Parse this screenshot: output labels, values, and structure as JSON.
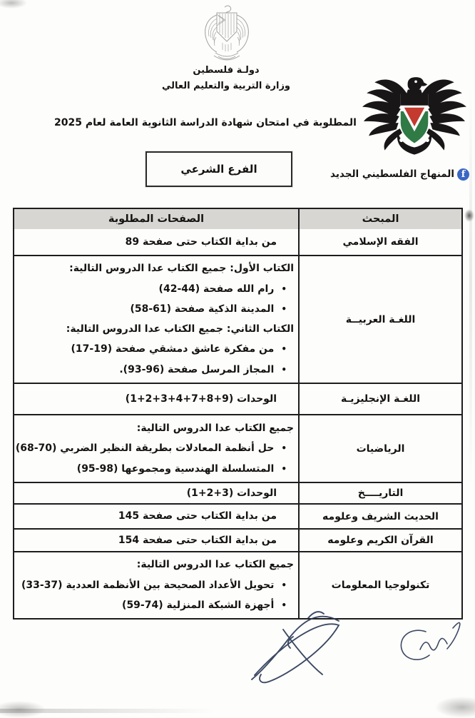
{
  "header": {
    "country": "دولـة فلسطين",
    "ministry": "وزارة التربية والتعليم العالي",
    "title": "المادة المطلوبة في امتحان شهادة الدراسة الثانوية العامة لعام 2025",
    "branch": "الفرع الشرعي"
  },
  "logo": {
    "name": "المنهاج الفلسطيني الجديد",
    "facebook_letter": "f"
  },
  "icons": {
    "bullet": "•"
  },
  "table": {
    "headers": {
      "pages": "الصفحات المطلوبة",
      "subject": "المبحث"
    },
    "rows": [
      {
        "subject": "الفقه الإسلامي",
        "lines": [
          {
            "type": "single",
            "text": "من بداية الكتاب حتى صفحة 89"
          }
        ]
      },
      {
        "subject": "اللغـة العربيــة",
        "lines": [
          {
            "type": "head",
            "text": "الكتاب الأول: جميع الكتاب عدا الدروس التالية:"
          },
          {
            "type": "bullet",
            "text": "رام الله صفحة (44-42)"
          },
          {
            "type": "bullet",
            "text": "المدينة الذكية صفحة (61-58)"
          },
          {
            "type": "head",
            "text": "الكتاب الثاني: جميع الكتاب عدا الدروس التالية:"
          },
          {
            "type": "bullet",
            "text": "من مفكرة عاشق دمشقي صفحة (19-17)"
          },
          {
            "type": "bullet",
            "text": "المجاز المرسل صفحة  (96-93)."
          }
        ]
      },
      {
        "subject": "اللغـة الإنجليزيـة",
        "lines": [
          {
            "type": "single",
            "text": "الوحدات (9+8+7+4+3+2+1)"
          }
        ]
      },
      {
        "subject": "الرياضيات",
        "lines": [
          {
            "type": "head",
            "text": "جميع الكتاب عدا الدروس التالية:"
          },
          {
            "type": "bullet",
            "text": "حل أنظمة المعادلات بطريقة النظير الضربي (70-68)"
          },
          {
            "type": "bullet",
            "text": "المتسلسلة الهندسية ومجموعها (98-95)"
          }
        ]
      },
      {
        "subject": "التاريــــخ",
        "lines": [
          {
            "type": "single",
            "text": "الوحدات (3+2+1)"
          }
        ]
      },
      {
        "subject": "الحديث الشريف وعلومه",
        "lines": [
          {
            "type": "single",
            "text": "من بداية الكتاب حتى صفحة 145"
          }
        ]
      },
      {
        "subject": "القرآن الكريم وعلومه",
        "lines": [
          {
            "type": "single",
            "text": "من بداية الكتاب حتى صفحة 154"
          }
        ]
      },
      {
        "subject": "تكنولوجيا المعلومات",
        "lines": [
          {
            "type": "head",
            "text": "جميع الكتاب عدا الدروس التالية:"
          },
          {
            "type": "bullet",
            "text": "تحويل الأعداد الصحيحة بين الأنظمة العددية (37-33)"
          },
          {
            "type": "bullet",
            "text": "أجهزة الشبكة المنزلية (74-59)"
          }
        ]
      }
    ]
  },
  "colors": {
    "text": "#151311",
    "border": "#1d1d1d",
    "header_gray": "#d8d6d2",
    "flag_red": "#c43a2e",
    "flag_green": "#2f7a45",
    "eagle_black": "#191617",
    "facebook_blue": "#3a66c4",
    "emblem_gray": "#a3a3a3",
    "ink": "#2c3a57"
  }
}
